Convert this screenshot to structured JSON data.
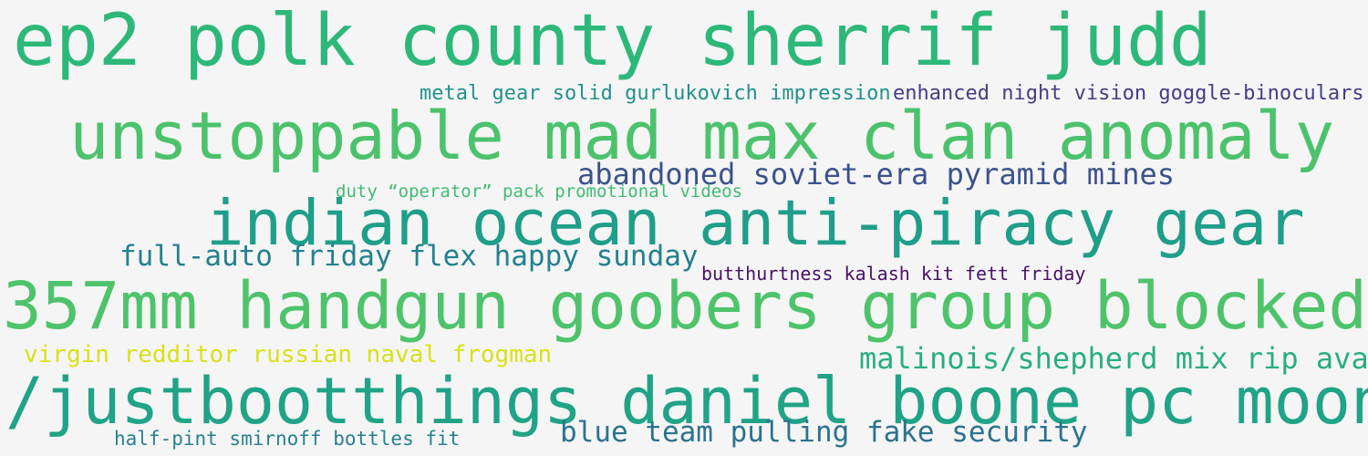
{
  "words": [
    {
      "text": "ep2 polk county sherrif judd",
      "color": "#2db87a"
    },
    {
      "text": "metal gear solid gurlukovich impression",
      "color": "#21918c"
    },
    {
      "text": "enhanced night vision goggle-binoculars",
      "color": "#433e85"
    },
    {
      "text": "unstoppable mad max clan anomaly",
      "color": "#4cc26c"
    },
    {
      "text": "abandoned soviet-era pyramid mines",
      "color": "#3b528b"
    },
    {
      "text": "duty “operator” pack promotional videos",
      "color": "#3fbc73"
    },
    {
      "text": "indian ocean anti-piracy gear",
      "color": "#1f9e89"
    },
    {
      "text": "full-auto friday flex happy sunday",
      "color": "#23818e"
    },
    {
      "text": "butthurtness kalash kit fett friday",
      "color": "#471365"
    },
    {
      "text": "357mm handgun goobers group blocked",
      "color": "#4ec36b"
    },
    {
      "text": "virgin redditor russian naval frogman",
      "color": "#d8e219"
    },
    {
      "text": "malinois/shepherd mix rip ava",
      "color": "#28ae80"
    },
    {
      "text": "/justbootthings daniel boone pc moons",
      "color": "#20a386"
    },
    {
      "text": "half-pint smirnoff bottles fit",
      "color": "#27808e"
    },
    {
      "text": "blue team pulling fake security",
      "color": "#2c728e"
    }
  ]
}
